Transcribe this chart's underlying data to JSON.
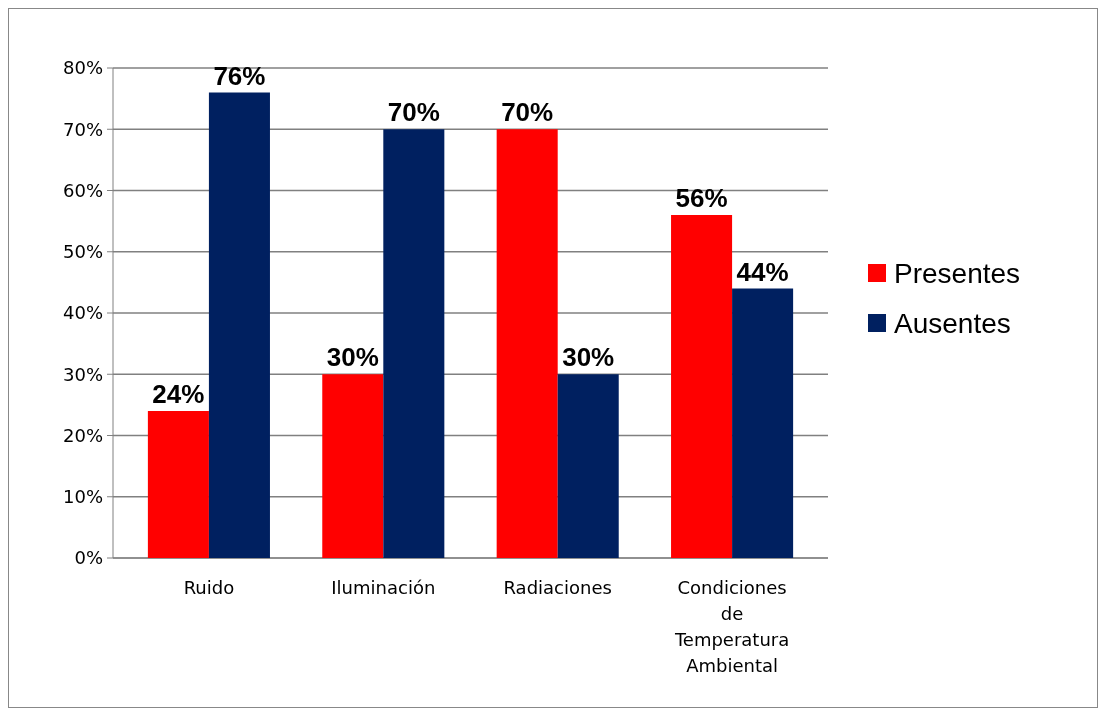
{
  "chart_data": {
    "type": "bar",
    "categories": [
      "Ruido",
      "Iluminación",
      "Radiaciones",
      "Condiciones de Temperatura Ambiental"
    ],
    "series": [
      {
        "name": "Presentes",
        "color": "#ff0000",
        "values": [
          24,
          30,
          70,
          56
        ],
        "value_labels": [
          "24%",
          "30%",
          "70%",
          "56%"
        ]
      },
      {
        "name": "Ausentes",
        "color": "#002060",
        "values": [
          76,
          70,
          30,
          44
        ],
        "value_labels": [
          "76%",
          "70%",
          "30%",
          "44%"
        ]
      }
    ],
    "ylim": [
      0,
      80
    ],
    "yticks": [
      {
        "value": 0,
        "label": "0%"
      },
      {
        "value": 10,
        "label": "10%"
      },
      {
        "value": 20,
        "label": "20%"
      },
      {
        "value": 30,
        "label": "30%"
      },
      {
        "value": 40,
        "label": "40%"
      },
      {
        "value": 50,
        "label": "50%"
      },
      {
        "value": 60,
        "label": "60%"
      },
      {
        "value": 70,
        "label": "70%"
      },
      {
        "value": 80,
        "label": "80%"
      }
    ],
    "grid": "y",
    "legend": "right"
  }
}
